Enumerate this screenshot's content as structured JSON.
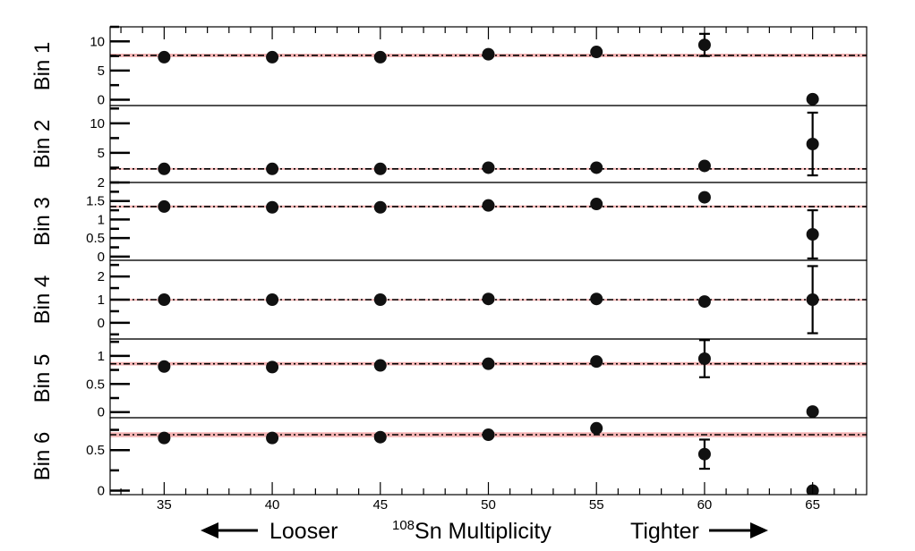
{
  "chart_data": {
    "type": "scatter",
    "xlabel": {
      "superscript": "108",
      "text": "Sn Multiplicity",
      "left_note": "Looser",
      "right_note": "Tighter"
    },
    "x": [
      35,
      40,
      45,
      50,
      55,
      60,
      65
    ],
    "xticks": [
      "35",
      "40",
      "45",
      "50",
      "55",
      "60",
      "65"
    ],
    "xlim": [
      32.5,
      67.5
    ],
    "band_color": "#f4b3b3",
    "line_color": "#000000",
    "panels": [
      {
        "label": "Bin 1",
        "ylim": [
          -1,
          12.5
        ],
        "yticks": [
          0,
          5,
          10
        ],
        "ytick_labels": [
          "0",
          "5",
          "10"
        ],
        "reference": 7.6,
        "band": [
          7.3,
          7.9
        ],
        "y": [
          7.3,
          7.3,
          7.3,
          7.8,
          8.2,
          9.4,
          0.1
        ],
        "yerr": [
          0.1,
          0.1,
          0.1,
          0.1,
          0.2,
          1.9,
          0.1
        ]
      },
      {
        "label": "Bin 2",
        "ylim": [
          0,
          13
        ],
        "yticks": [
          5,
          10
        ],
        "ytick_labels": [
          "5",
          "10"
        ],
        "reference": 2.3,
        "band": [
          2.15,
          2.45
        ],
        "y": [
          2.3,
          2.3,
          2.3,
          2.5,
          2.5,
          2.8,
          6.5
        ],
        "yerr": [
          0.05,
          0.05,
          0.05,
          0.05,
          0.1,
          0.5,
          5.3
        ]
      },
      {
        "label": "Bin 3",
        "ylim": [
          -0.1,
          2
        ],
        "yticks": [
          0,
          0.5,
          1,
          1.5,
          2
        ],
        "ytick_labels": [
          "0",
          "0.5",
          "1",
          "1.5",
          "2"
        ],
        "reference": 1.35,
        "band": [
          1.32,
          1.38
        ],
        "y": [
          1.35,
          1.33,
          1.33,
          1.38,
          1.42,
          1.6,
          0.6
        ],
        "yerr": [
          0.02,
          0.02,
          0.02,
          0.02,
          0.03,
          0.13,
          0.65
        ]
      },
      {
        "label": "Bin 4",
        "ylim": [
          -0.7,
          2.7
        ],
        "yticks": [
          0,
          1,
          2
        ],
        "ytick_labels": [
          "0",
          "1",
          "2"
        ],
        "reference": 1.0,
        "band": [
          0.97,
          1.03
        ],
        "y": [
          1.0,
          1.0,
          1.0,
          1.03,
          1.03,
          0.92,
          1.0
        ],
        "yerr": [
          0.02,
          0.02,
          0.02,
          0.02,
          0.03,
          0.06,
          1.45
        ]
      },
      {
        "label": "Bin 5",
        "ylim": [
          -0.1,
          1.3
        ],
        "yticks": [
          0,
          0.5,
          1
        ],
        "ytick_labels": [
          "0",
          "0.5",
          "1"
        ],
        "reference": 0.86,
        "band": [
          0.83,
          0.89
        ],
        "y": [
          0.81,
          0.8,
          0.83,
          0.86,
          0.9,
          0.95,
          0.01
        ],
        "yerr": [
          0.02,
          0.02,
          0.02,
          0.02,
          0.03,
          0.33,
          0.01
        ]
      },
      {
        "label": "Bin 6",
        "ylim": [
          -0.05,
          0.9
        ],
        "yticks": [
          0,
          0.5
        ],
        "ytick_labels": [
          "0",
          "0.5"
        ],
        "reference": 0.69,
        "band": [
          0.66,
          0.72
        ],
        "y": [
          0.65,
          0.65,
          0.66,
          0.69,
          0.77,
          0.45,
          0.0
        ],
        "yerr": [
          0.01,
          0.01,
          0.01,
          0.01,
          0.02,
          0.18,
          0.01
        ]
      }
    ]
  }
}
